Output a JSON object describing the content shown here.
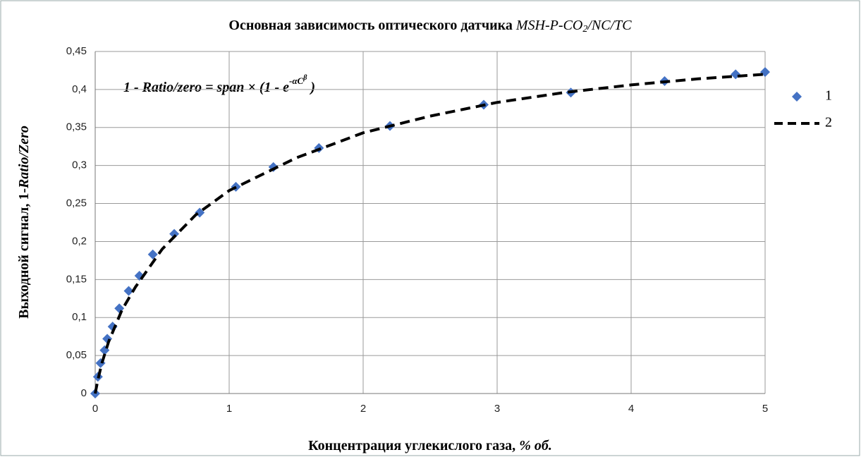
{
  "chart_data": {
    "type": "scatter",
    "title": "Основная зависимость оптического датчика ",
    "title_italic": [
      "MSH-P-CO",
      "2",
      "/NC/TC"
    ],
    "annotation": [
      "1 - Ratio/zero = span × (1 - e",
      "-αC",
      "β",
      " )"
    ],
    "x_label": [
      "Концентрация углекислого газа, ",
      "% об."
    ],
    "y_label": [
      "Выходной сигнал, 1-",
      "Ratio/Zero"
    ],
    "xlim": [
      0,
      5
    ],
    "xticks": [
      0,
      1,
      2,
      3,
      4,
      5
    ],
    "ylim": [
      0,
      0.45
    ],
    "yticks": [
      0,
      {
        "value": 0.05,
        "label": "0,05"
      },
      {
        "value": 0.1,
        "label": "0,1"
      },
      {
        "value": 0.15,
        "label": "0,15"
      },
      {
        "value": 0.2,
        "label": "0,2"
      },
      {
        "value": 0.25,
        "label": "0,25"
      },
      {
        "value": 0.3,
        "label": "0,3"
      },
      {
        "value": 0.35,
        "label": "0,35"
      },
      {
        "value": 0.4,
        "label": "0,4"
      },
      {
        "value": 0.45,
        "label": "0,45"
      }
    ],
    "grid": true,
    "legend": "right",
    "series": [
      {
        "name": "1",
        "mode": "markers",
        "color": "#4472c4",
        "x": [
          0,
          0.02,
          0.04,
          0.07,
          0.09,
          0.13,
          0.18,
          0.25,
          0.33,
          0.43,
          0.59,
          0.78,
          1.05,
          1.33,
          1.67,
          2.2,
          2.9,
          3.55,
          4.25,
          4.78,
          5.0
        ],
        "values": [
          0,
          0.022,
          0.04,
          0.057,
          0.072,
          0.088,
          0.112,
          0.135,
          0.155,
          0.183,
          0.21,
          0.238,
          0.272,
          0.298,
          0.323,
          0.352,
          0.38,
          0.396,
          0.411,
          0.42,
          0.423
        ]
      },
      {
        "name": "2",
        "mode": "dashed-line",
        "color": "#000000",
        "x": [
          0,
          0.02,
          0.05,
          0.1,
          0.2,
          0.3,
          0.5,
          0.75,
          1,
          1.5,
          2,
          2.5,
          3,
          3.5,
          4,
          4.5,
          5
        ],
        "values": [
          0,
          0.018,
          0.04,
          0.068,
          0.11,
          0.14,
          0.19,
          0.235,
          0.267,
          0.31,
          0.343,
          0.365,
          0.383,
          0.396,
          0.406,
          0.414,
          0.42
        ]
      }
    ]
  }
}
